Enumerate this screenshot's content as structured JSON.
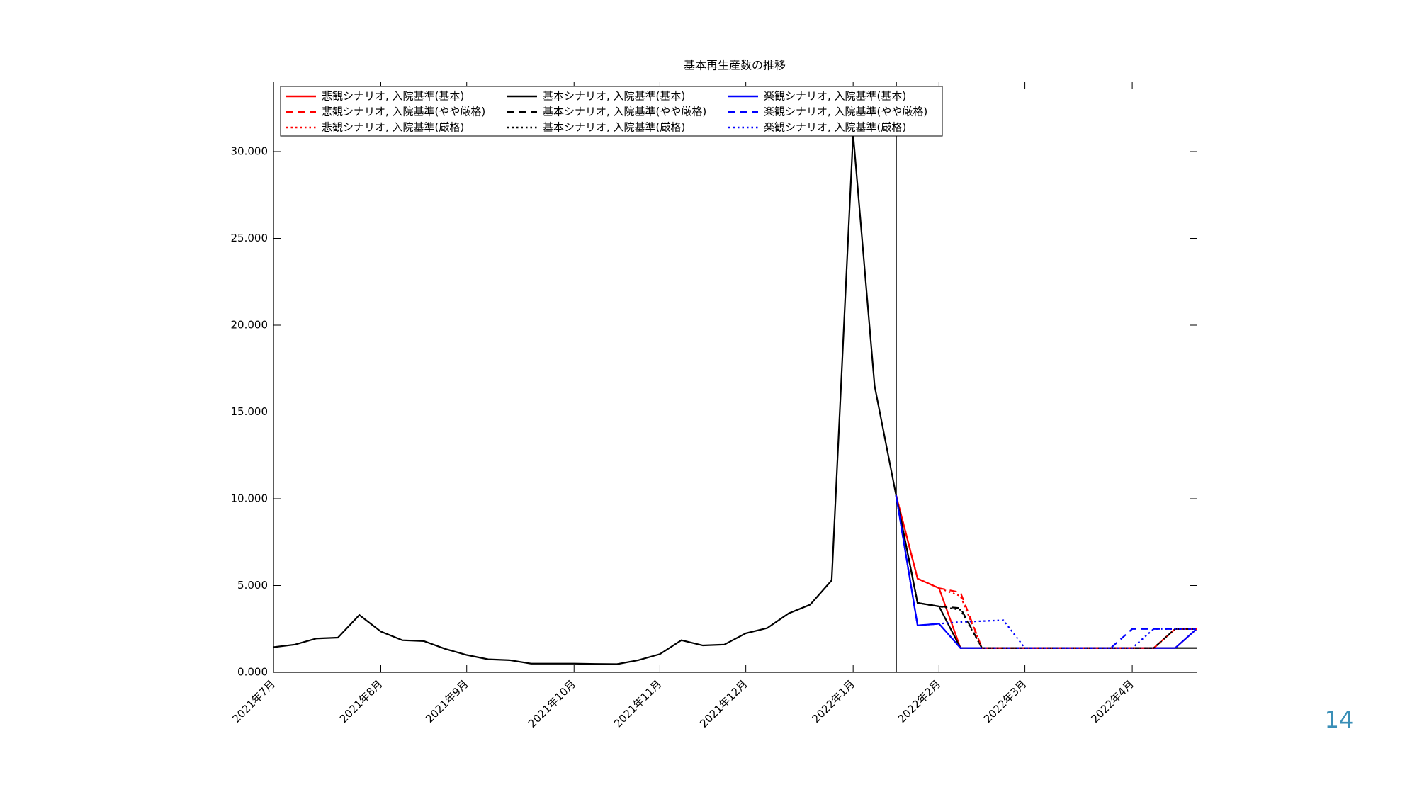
{
  "chart_data": {
    "type": "line",
    "title": "基本再生産数の推移",
    "categories": [
      "2021年7月",
      null,
      null,
      null,
      null,
      "2021年8月",
      null,
      null,
      null,
      "2021年9月",
      null,
      null,
      null,
      null,
      "2021年10月",
      null,
      null,
      null,
      "2021年11月",
      null,
      null,
      null,
      "2021年12月",
      null,
      null,
      null,
      null,
      "2022年1月",
      null,
      null,
      null,
      "2022年2月",
      null,
      null,
      null,
      "2022年3月",
      null,
      null,
      null,
      null,
      "2022年4月",
      null,
      null,
      null
    ],
    "ylim": [
      0,
      34
    ],
    "yticks": [
      {
        "value": 0,
        "label": "0.000"
      },
      {
        "value": 5,
        "label": "5.000"
      },
      {
        "value": 10,
        "label": "10.000"
      },
      {
        "value": 15,
        "label": "15.000"
      },
      {
        "value": 20,
        "label": "20.000"
      },
      {
        "value": 25,
        "label": "25.000"
      },
      {
        "value": 30,
        "label": "30.000"
      }
    ],
    "legend": "upper left",
    "series": [
      {
        "name": "悲観シナリオ, 入院基準(基本)",
        "color": "#ff0000",
        "dash": "solid",
        "values": [
          null,
          null,
          null,
          null,
          null,
          null,
          null,
          null,
          null,
          null,
          null,
          null,
          null,
          null,
          null,
          null,
          null,
          null,
          null,
          null,
          null,
          null,
          null,
          null,
          null,
          null,
          null,
          null,
          null,
          10.2,
          5.4,
          4.85,
          1.4,
          1.4,
          1.4,
          1.4,
          1.4,
          1.4,
          1.4,
          1.4,
          1.4,
          1.4,
          1.4,
          2.5
        ]
      },
      {
        "name": "基本シナリオ, 入院基準(基本)",
        "color": "#000000",
        "dash": "solid",
        "values": [
          1.45,
          1.6,
          1.95,
          2.0,
          3.3,
          2.35,
          1.85,
          1.8,
          1.35,
          1.0,
          0.75,
          0.7,
          0.5,
          0.5,
          0.5,
          0.48,
          0.47,
          0.7,
          1.05,
          1.85,
          1.55,
          1.6,
          2.25,
          2.55,
          3.4,
          3.9,
          5.3,
          31.0,
          16.5,
          10.2,
          4.0,
          3.8,
          1.4,
          1.4,
          1.4,
          1.4,
          1.4,
          1.4,
          1.4,
          1.4,
          1.4,
          1.4,
          1.4,
          1.4
        ]
      },
      {
        "name": "楽観シナリオ, 入院基準(基本)",
        "color": "#0000ff",
        "dash": "solid",
        "values": [
          null,
          null,
          null,
          null,
          null,
          null,
          null,
          null,
          null,
          null,
          null,
          null,
          null,
          null,
          null,
          null,
          null,
          null,
          null,
          null,
          null,
          null,
          null,
          null,
          null,
          null,
          null,
          null,
          null,
          10.2,
          2.7,
          2.8,
          1.4,
          1.4,
          1.4,
          1.4,
          1.4,
          1.4,
          1.4,
          1.4,
          1.4,
          1.4,
          1.4,
          2.5
        ]
      },
      {
        "name": "悲観シナリオ, 入院基準(やや厳格)",
        "color": "#ff0000",
        "dash": "dashed",
        "values": [
          null,
          null,
          null,
          null,
          null,
          null,
          null,
          null,
          null,
          null,
          null,
          null,
          null,
          null,
          null,
          null,
          null,
          null,
          null,
          null,
          null,
          null,
          null,
          null,
          null,
          null,
          null,
          null,
          null,
          10.2,
          5.4,
          4.85,
          4.6,
          1.4,
          1.4,
          1.4,
          1.4,
          1.4,
          1.4,
          1.4,
          1.4,
          1.4,
          2.5,
          2.5
        ]
      },
      {
        "name": "基本シナリオ, 入院基準(やや厳格)",
        "color": "#000000",
        "dash": "dashed",
        "values": [
          null,
          null,
          null,
          null,
          null,
          null,
          null,
          null,
          null,
          null,
          null,
          null,
          null,
          null,
          null,
          null,
          null,
          null,
          null,
          null,
          null,
          null,
          null,
          null,
          null,
          null,
          null,
          null,
          null,
          10.2,
          4.0,
          3.8,
          3.7,
          1.4,
          1.4,
          1.4,
          1.4,
          1.4,
          1.4,
          1.4,
          1.4,
          1.4,
          2.5,
          2.5
        ]
      },
      {
        "name": "楽観シナリオ, 入院基準(やや厳格)",
        "color": "#0000ff",
        "dash": "dashed",
        "values": [
          null,
          null,
          null,
          null,
          null,
          null,
          null,
          null,
          null,
          null,
          null,
          null,
          null,
          null,
          null,
          null,
          null,
          null,
          null,
          null,
          null,
          null,
          null,
          null,
          null,
          null,
          null,
          null,
          null,
          10.2,
          2.7,
          2.8,
          1.4,
          1.4,
          1.4,
          1.4,
          1.4,
          1.4,
          1.4,
          1.4,
          2.5,
          2.5,
          2.5,
          2.5
        ]
      },
      {
        "name": "悲観シナリオ, 入院基準(厳格)",
        "color": "#ff0000",
        "dash": "dotted",
        "values": [
          null,
          null,
          null,
          null,
          null,
          null,
          null,
          null,
          null,
          null,
          null,
          null,
          null,
          null,
          null,
          null,
          null,
          null,
          null,
          null,
          null,
          null,
          null,
          null,
          null,
          null,
          null,
          null,
          null,
          10.2,
          5.4,
          4.85,
          4.4,
          1.4,
          1.4,
          1.4,
          1.4,
          1.4,
          1.4,
          1.4,
          1.4,
          1.4,
          2.5,
          2.5
        ]
      },
      {
        "name": "基本シナリオ, 入院基準(厳格)",
        "color": "#000000",
        "dash": "dotted",
        "values": [
          null,
          null,
          null,
          null,
          null,
          null,
          null,
          null,
          null,
          null,
          null,
          null,
          null,
          null,
          null,
          null,
          null,
          null,
          null,
          null,
          null,
          null,
          null,
          null,
          null,
          null,
          null,
          null,
          null,
          10.2,
          4.0,
          3.8,
          3.6,
          1.4,
          1.4,
          1.4,
          1.4,
          1.4,
          1.4,
          1.4,
          1.4,
          1.4,
          2.5,
          2.5
        ]
      },
      {
        "name": "楽観シナリオ, 入院基準(厳格)",
        "color": "#0000ff",
        "dash": "dotted",
        "values": [
          null,
          null,
          null,
          null,
          null,
          null,
          null,
          null,
          null,
          null,
          null,
          null,
          null,
          null,
          null,
          null,
          null,
          null,
          null,
          null,
          null,
          null,
          null,
          null,
          null,
          null,
          null,
          null,
          null,
          10.2,
          2.7,
          2.8,
          2.9,
          2.95,
          3.0,
          1.4,
          1.4,
          1.4,
          1.4,
          1.4,
          1.4,
          2.5,
          2.5,
          2.5
        ]
      }
    ]
  },
  "page_number": "14"
}
